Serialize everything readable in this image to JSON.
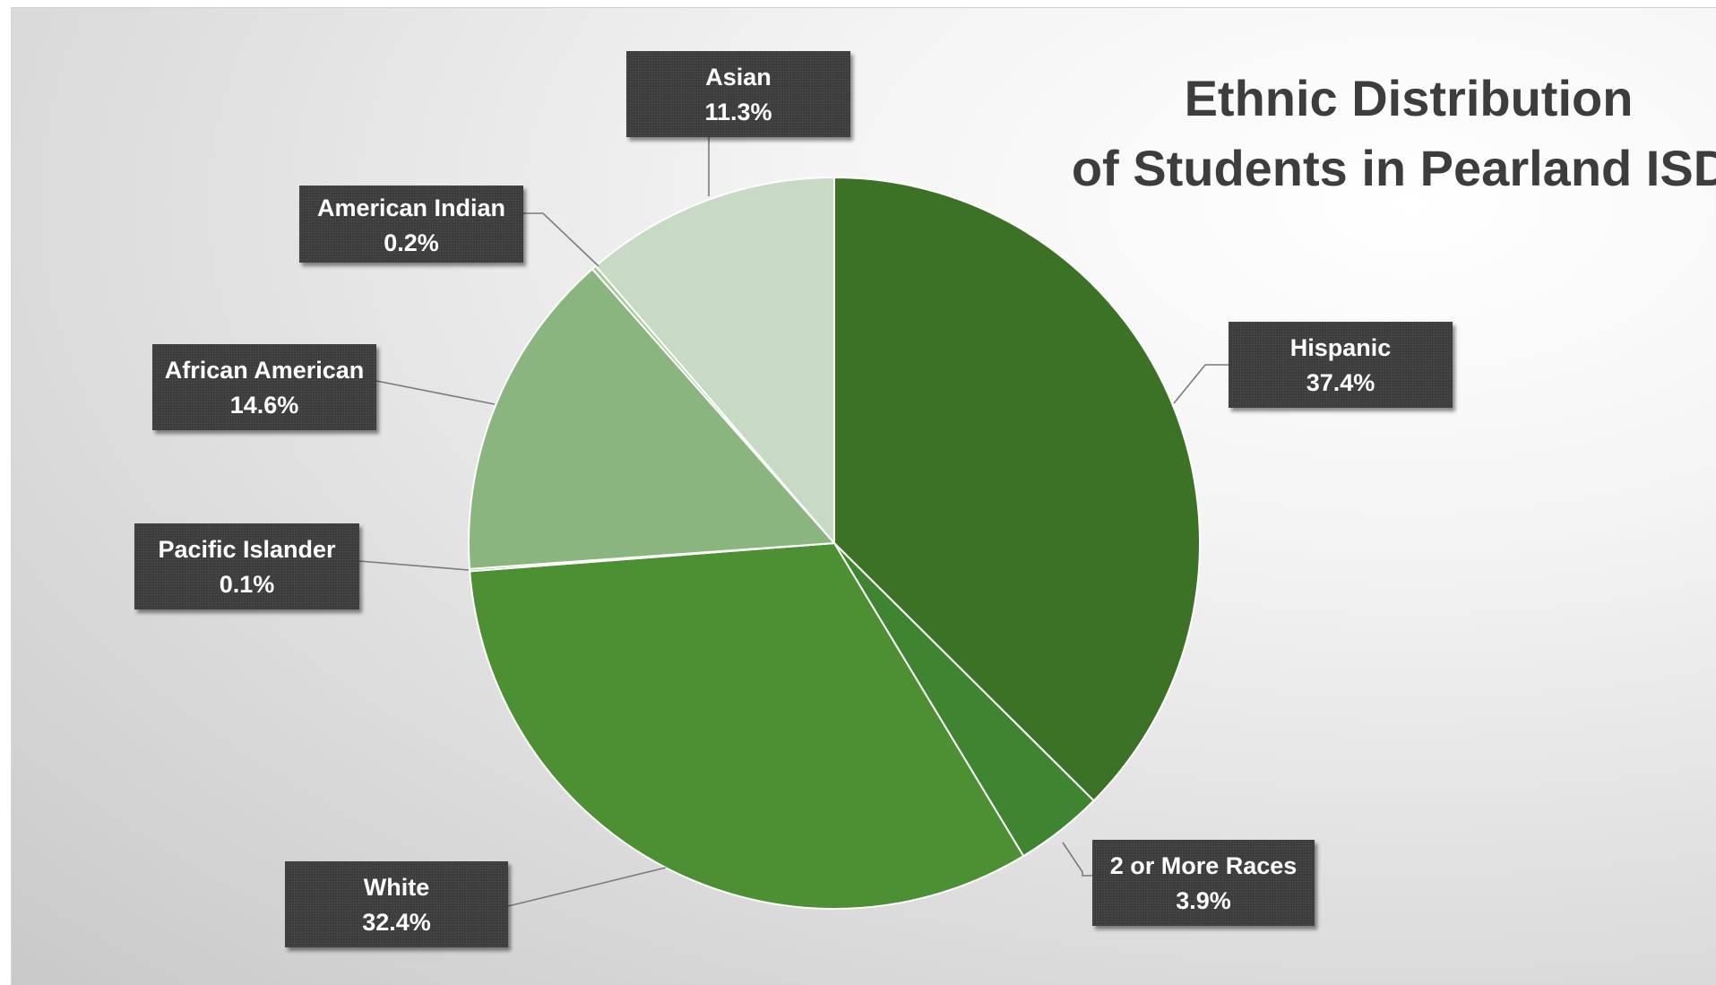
{
  "chart_data": {
    "type": "pie",
    "title_lines": [
      "Ethnic Distribution",
      "of Students in Pearland ISD"
    ],
    "start_angle_deg": 0,
    "direction": "clockwise",
    "legend": "none",
    "slices": [
      {
        "name": "Hispanic",
        "value": 37.4,
        "label": "37.4%",
        "color": "#3b7226"
      },
      {
        "name": "2 or More Races",
        "value": 3.9,
        "label": "3.9%",
        "color": "#3f8430"
      },
      {
        "name": "White",
        "value": 32.4,
        "label": "32.4%",
        "color": "#4c9033"
      },
      {
        "name": "Pacific Islander",
        "value": 0.1,
        "label": "0.1%",
        "color": "#6da34f"
      },
      {
        "name": "African American",
        "value": 14.6,
        "label": "14.6%",
        "color": "#8ab57e"
      },
      {
        "name": "American Indian",
        "value": 0.2,
        "label": "0.2%",
        "color": "#a9c89c"
      },
      {
        "name": "Asian",
        "value": 11.3,
        "label": "11.3%",
        "color": "#c7dac3"
      }
    ]
  }
}
